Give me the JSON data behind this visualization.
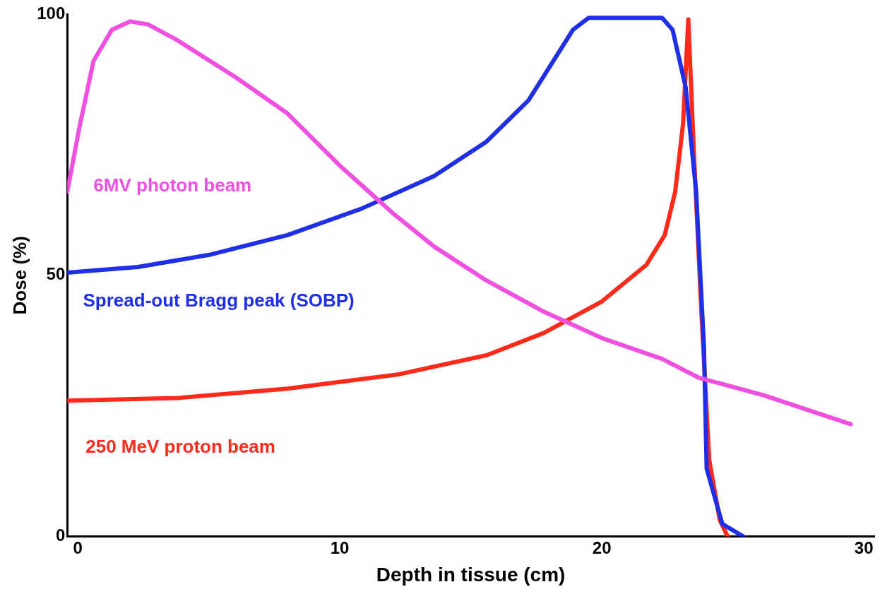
{
  "chart_data": {
    "type": "line",
    "xlabel": "Depth in tissue (cm)",
    "ylabel": "Dose (%)",
    "xlim": [
      -0.4,
      30.4
    ],
    "ylim": [
      0,
      100
    ],
    "xticks": [
      0,
      10,
      20,
      30
    ],
    "yticks": [
      0,
      50,
      100
    ],
    "grid": false,
    "legend": false,
    "marker": "none",
    "line_style": "solid",
    "series": [
      {
        "name": "6MV photon beam",
        "color": "#f050e0",
        "x": [
          -0.4,
          0.05,
          0.6,
          1.3,
          2,
          2.7,
          3.8,
          6,
          8,
          10,
          12,
          13.6,
          15.6,
          17.8,
          20,
          22.3,
          23.7,
          26.2,
          29.5
        ],
        "values": [
          66,
          78,
          91,
          97,
          98.6,
          98,
          95,
          88,
          81,
          71,
          62,
          55.5,
          49,
          43,
          38,
          34,
          30.4,
          27,
          21.5
        ]
      },
      {
        "name": "Spread-out Bragg peak (SOBP)",
        "color": "#1f2fe8",
        "x": [
          -0.4,
          2.3,
          5.1,
          8,
          10.8,
          13.6,
          15.6,
          17.2,
          18.9,
          19.5,
          20.6,
          22.3,
          22.7,
          23.2,
          23.6,
          23.9,
          24,
          24.6,
          25.4
        ],
        "values": [
          50.5,
          51.6,
          54,
          57.7,
          62.7,
          69,
          75.6,
          83.5,
          97,
          99.3,
          99.3,
          99.3,
          97,
          86,
          66,
          36,
          13,
          2.4,
          0
        ]
      },
      {
        "name": "250 MeV proton beam",
        "color": "#ff2a1a",
        "x": [
          -0.4,
          3.8,
          8,
          12.2,
          15.6,
          17.8,
          20,
          21.7,
          22.4,
          22.8,
          23.1,
          23.3,
          23.5,
          23.8,
          24.1,
          24.5,
          24.8
        ],
        "values": [
          26,
          26.5,
          28.3,
          31,
          34.7,
          39,
          45,
          52,
          57.7,
          66,
          79,
          99,
          75,
          43,
          14.6,
          3.2,
          0
        ]
      }
    ]
  }
}
